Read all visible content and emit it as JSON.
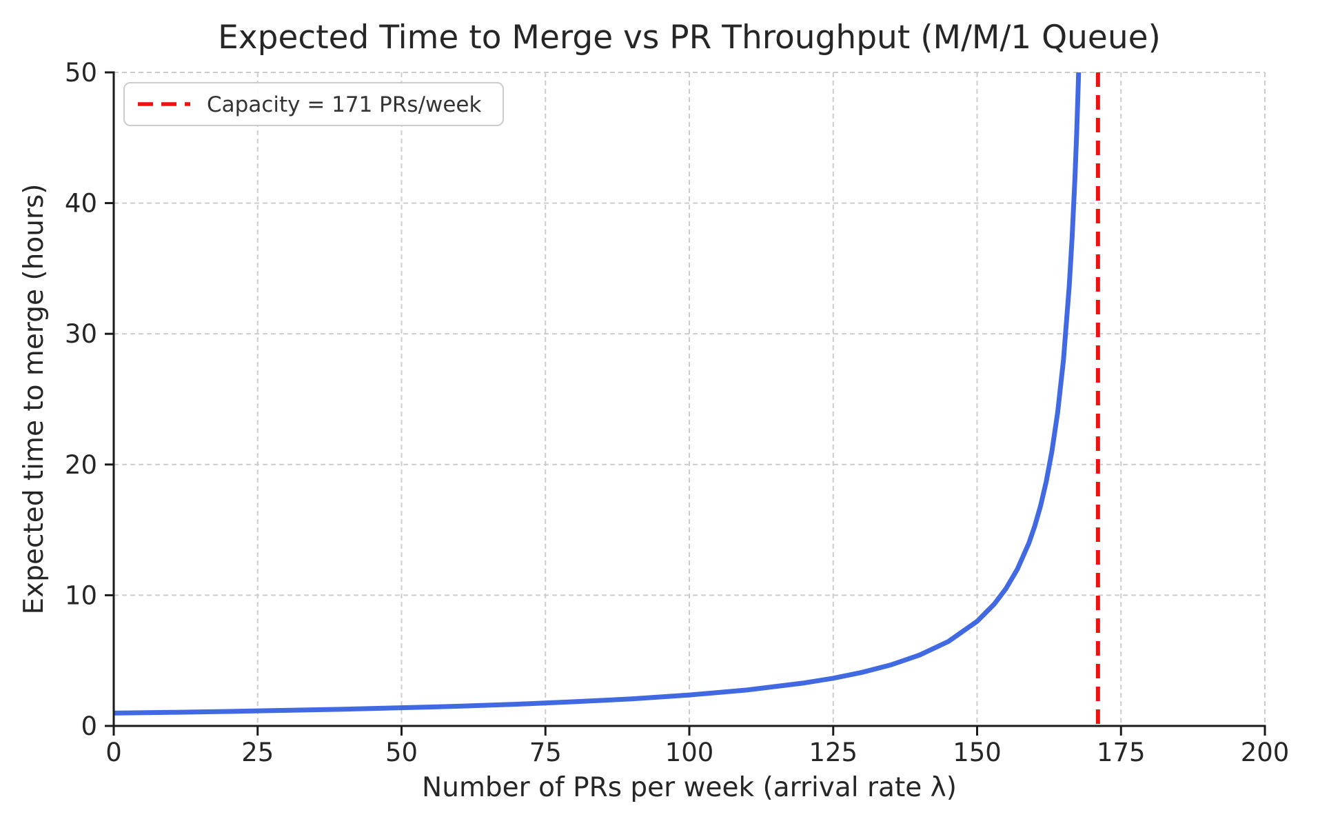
{
  "chart_data": {
    "type": "line",
    "title": "Expected Time to Merge vs PR Throughput (M/M/1 Queue)",
    "xlabel": "Number of PRs per week (arrival rate λ)",
    "ylabel": "Expected time to merge (hours)",
    "xlim": [
      0,
      200
    ],
    "ylim": [
      0,
      50
    ],
    "xticks": [
      0,
      25,
      50,
      75,
      100,
      125,
      150,
      175,
      200
    ],
    "yticks": [
      0,
      10,
      20,
      30,
      40,
      50
    ],
    "grid": true,
    "grid_color": "#cccccc",
    "legend_position": "upper left",
    "series": [
      {
        "name": "expected-time-to-merge",
        "color": "#4169e1",
        "style": "solid",
        "x": [
          0,
          10,
          20,
          30,
          40,
          50,
          60,
          70,
          80,
          90,
          100,
          110,
          120,
          125,
          130,
          135,
          140,
          145,
          150,
          153,
          155,
          157,
          159,
          160,
          161,
          162,
          163,
          164,
          165,
          166,
          166.5,
          167,
          167.3,
          167.64
        ],
        "y": [
          0.98,
          1.04,
          1.11,
          1.19,
          1.28,
          1.39,
          1.51,
          1.66,
          1.85,
          2.07,
          2.37,
          2.75,
          3.29,
          3.65,
          4.1,
          4.67,
          5.42,
          6.46,
          8.0,
          9.33,
          10.5,
          12.0,
          14.0,
          15.27,
          16.8,
          18.67,
          21.0,
          24.0,
          28.0,
          33.6,
          37.33,
          42.0,
          45.41,
          50.0
        ]
      }
    ],
    "vline": {
      "x": 171,
      "color": "#ee1111",
      "style": "dashed",
      "label": "Capacity = 171 PRs/week"
    },
    "legend": {
      "entries": [
        {
          "label": "Capacity = 171 PRs/week",
          "color": "#ee1111",
          "style": "dashed"
        }
      ]
    }
  }
}
